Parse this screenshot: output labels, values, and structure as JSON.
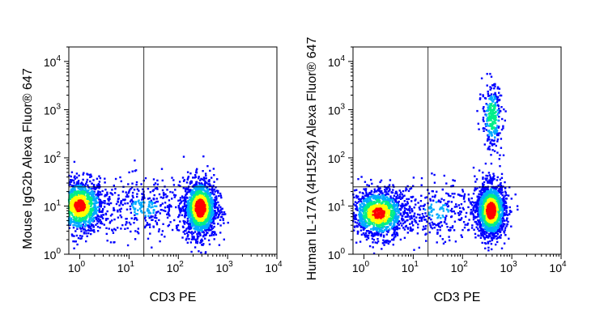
{
  "chart_data": [
    {
      "type": "scatter",
      "title": "",
      "xlabel": "CD3 PE",
      "ylabel": "Mouse IgG2b Alexa Fluor® 647",
      "x_scale": "log",
      "y_scale": "log",
      "xlim": [
        0.6,
        10000
      ],
      "ylim": [
        1,
        20000
      ],
      "x_ticks": [
        "10^0",
        "10^1",
        "10^2",
        "10^3",
        "10^4"
      ],
      "y_ticks": [
        "10^0",
        "10^1",
        "10^2",
        "10^3",
        "10^4"
      ],
      "quadrant_gate": {
        "x": 20,
        "y": 25
      },
      "grid": false,
      "legend": "none",
      "populations": [
        {
          "x": 1.0,
          "y": 10,
          "x_spread": 0.25,
          "y_spread": 0.28,
          "count": 1200,
          "density": "high"
        },
        {
          "x": 280,
          "y": 9,
          "x_spread": 0.17,
          "y_spread": 0.3,
          "count": 1500,
          "density": "very-high"
        },
        {
          "x": 20,
          "y": 9,
          "x_spread": 0.45,
          "y_spread": 0.3,
          "count": 350,
          "density": "low"
        }
      ]
    },
    {
      "type": "scatter",
      "title": "",
      "xlabel": "CD3 PE",
      "ylabel": "Human IL-17A (4H1524) Alexa Fluor® 647",
      "x_scale": "log",
      "y_scale": "log",
      "xlim": [
        0.6,
        10000
      ],
      "ylim": [
        1,
        20000
      ],
      "x_ticks": [
        "10^0",
        "10^1",
        "10^2",
        "10^3",
        "10^4"
      ],
      "y_ticks": [
        "10^0",
        "10^1",
        "10^2",
        "10^3",
        "10^4"
      ],
      "quadrant_gate": {
        "x": 20,
        "y": 25
      },
      "grid": false,
      "legend": "none",
      "populations": [
        {
          "x": 2.0,
          "y": 7,
          "x_spread": 0.28,
          "y_spread": 0.25,
          "count": 1300,
          "density": "high"
        },
        {
          "x": 380,
          "y": 8,
          "x_spread": 0.15,
          "y_spread": 0.28,
          "count": 1500,
          "density": "very-high"
        },
        {
          "x": 400,
          "y": 700,
          "x_spread": 0.1,
          "y_spread": 0.35,
          "count": 300,
          "density": "medium"
        },
        {
          "x": 30,
          "y": 8,
          "x_spread": 0.4,
          "y_spread": 0.3,
          "count": 300,
          "density": "low"
        }
      ]
    }
  ],
  "colors": {
    "density_ramp": [
      "#0000ff",
      "#00aaff",
      "#00ee88",
      "#ffff00",
      "#ff0000"
    ],
    "axis": "#000000",
    "gate_line": "#000000"
  }
}
